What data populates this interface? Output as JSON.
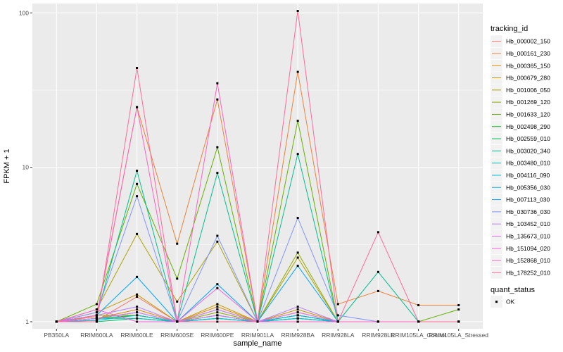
{
  "chart_data": {
    "type": "line",
    "xlabel": "sample_name",
    "ylabel": "FPKM + 1",
    "y_scale": "log10",
    "ylim": [
      0.9,
      115
    ],
    "y_ticks": [
      1,
      10,
      100
    ],
    "y_tick_labels": [
      "1",
      "10",
      "100"
    ],
    "grid": true,
    "legend_position": "right",
    "categories": [
      "PB350LA",
      "RRIM600LA",
      "RRIM600LE",
      "RRIM600SE",
      "RRIM600PE",
      "RRIM901LA",
      "RRIM928BA",
      "RRIM928LA",
      "RRIM928LE",
      "RRIM105LA_Control",
      "RRIM105LA_Stressed"
    ],
    "series": [
      {
        "name": "Hb_000002_150",
        "color": "#F8766D",
        "values": [
          1,
          1.02,
          1.45,
          1.0,
          1.2,
          1.0,
          1.1,
          1.0,
          1.0,
          1.0,
          1.0
        ]
      },
      {
        "name": "Hb_000161_230",
        "color": "#EC8239",
        "values": [
          1,
          1.08,
          24.5,
          3.2,
          27.5,
          1.0,
          41.5,
          1.3,
          1.58,
          1.28,
          1.28
        ]
      },
      {
        "name": "Hb_000365_150",
        "color": "#DB8E00",
        "values": [
          1,
          1.05,
          1.2,
          1.0,
          1.25,
          1.0,
          1.15,
          1.0,
          1.0,
          1.0,
          1.0
        ]
      },
      {
        "name": "Hb_000679_280",
        "color": "#C79800",
        "values": [
          1,
          1.15,
          1.5,
          1.0,
          1.3,
          1.0,
          1.2,
          1.0,
          1.0,
          1.0,
          1.0
        ]
      },
      {
        "name": "Hb_001006_050",
        "color": "#AEA200",
        "values": [
          1,
          1.2,
          3.7,
          1.35,
          3.3,
          1.0,
          2.6,
          1.0,
          1.0,
          1.0,
          1.0
        ]
      },
      {
        "name": "Hb_001269_120",
        "color": "#8FAA00",
        "values": [
          1,
          1.1,
          1.1,
          1.0,
          1.15,
          1.0,
          2.8,
          1.0,
          1.0,
          1.0,
          1.0
        ]
      },
      {
        "name": "Hb_001633_120",
        "color": "#64B200",
        "values": [
          1,
          1.3,
          7.8,
          1.9,
          13.5,
          1.0,
          20,
          1.0,
          1.0,
          1.0,
          1.2
        ]
      },
      {
        "name": "Hb_002498_290",
        "color": "#00B81B",
        "values": [
          1,
          1.05,
          1.1,
          1.0,
          1.1,
          1.0,
          1.1,
          1.0,
          1.0,
          1.0,
          1.0
        ]
      },
      {
        "name": "Hb_002559_010",
        "color": "#00BD5C",
        "values": [
          1,
          1.0,
          1.05,
          1.0,
          1.05,
          1.0,
          1.05,
          1.0,
          1.0,
          1.0,
          1.0
        ]
      },
      {
        "name": "Hb_003020_340",
        "color": "#00C08E",
        "values": [
          1,
          1.1,
          9.5,
          1.0,
          9.2,
          1.0,
          12.2,
          1.0,
          2.1,
          1.0,
          1.0
        ]
      },
      {
        "name": "Hb_003480_010",
        "color": "#00C1B7",
        "values": [
          1,
          1.05,
          1.05,
          1.0,
          1.05,
          1.0,
          1.05,
          1.0,
          1.0,
          1.0,
          1.0
        ]
      },
      {
        "name": "Hb_004116_090",
        "color": "#00BDD4",
        "values": [
          1,
          1.02,
          1.1,
          1.0,
          1.05,
          1.0,
          1.05,
          1.0,
          1.0,
          1.0,
          1.0
        ]
      },
      {
        "name": "Hb_005356_030",
        "color": "#00B5EE",
        "values": [
          1,
          1.05,
          1.15,
          1.0,
          1.1,
          1.0,
          1.1,
          1.0,
          1.0,
          1.0,
          1.0
        ]
      },
      {
        "name": "Hb_007113_030",
        "color": "#00A7FF",
        "values": [
          1,
          1.1,
          1.95,
          1.0,
          1.75,
          1.0,
          2.3,
          1.0,
          1.0,
          1.0,
          1.0
        ]
      },
      {
        "name": "Hb_030736_030",
        "color": "#7F96FF",
        "values": [
          1,
          1.15,
          6.5,
          1.0,
          3.6,
          1.0,
          4.7,
          1.1,
          1.0,
          1.0,
          1.0
        ]
      },
      {
        "name": "Hb_103452_010",
        "color": "#BC81FF",
        "values": [
          1,
          1.1,
          1.25,
          1.0,
          1.2,
          1.0,
          1.25,
          1.0,
          1.0,
          1.0,
          1.0
        ]
      },
      {
        "name": "Hb_135673_010",
        "color": "#E26EF7",
        "values": [
          1,
          1.05,
          1.15,
          1.0,
          1.1,
          1.0,
          1.15,
          1.0,
          1.0,
          1.0,
          1.0
        ]
      },
      {
        "name": "Hb_151094_020",
        "color": "#F863DF",
        "values": [
          1,
          1.2,
          1.0,
          1.0,
          1.65,
          1.0,
          1.0,
          1.0,
          1.0,
          1.0,
          1.0
        ]
      },
      {
        "name": "Hb_152868_010",
        "color": "#FF62BF",
        "values": [
          1,
          1.1,
          24.5,
          1.0,
          35,
          1.0,
          1.0,
          1.0,
          1.0,
          1.0,
          1.0
        ]
      },
      {
        "name": "Hb_178252_010",
        "color": "#FF6A98",
        "values": [
          1,
          1.0,
          44,
          1.0,
          1.0,
          1.0,
          103,
          1.0,
          3.8,
          1.0,
          1.0
        ]
      }
    ],
    "legend": {
      "title": "tracking_id",
      "quant_title": "quant_status",
      "quant_label": "OK"
    }
  }
}
